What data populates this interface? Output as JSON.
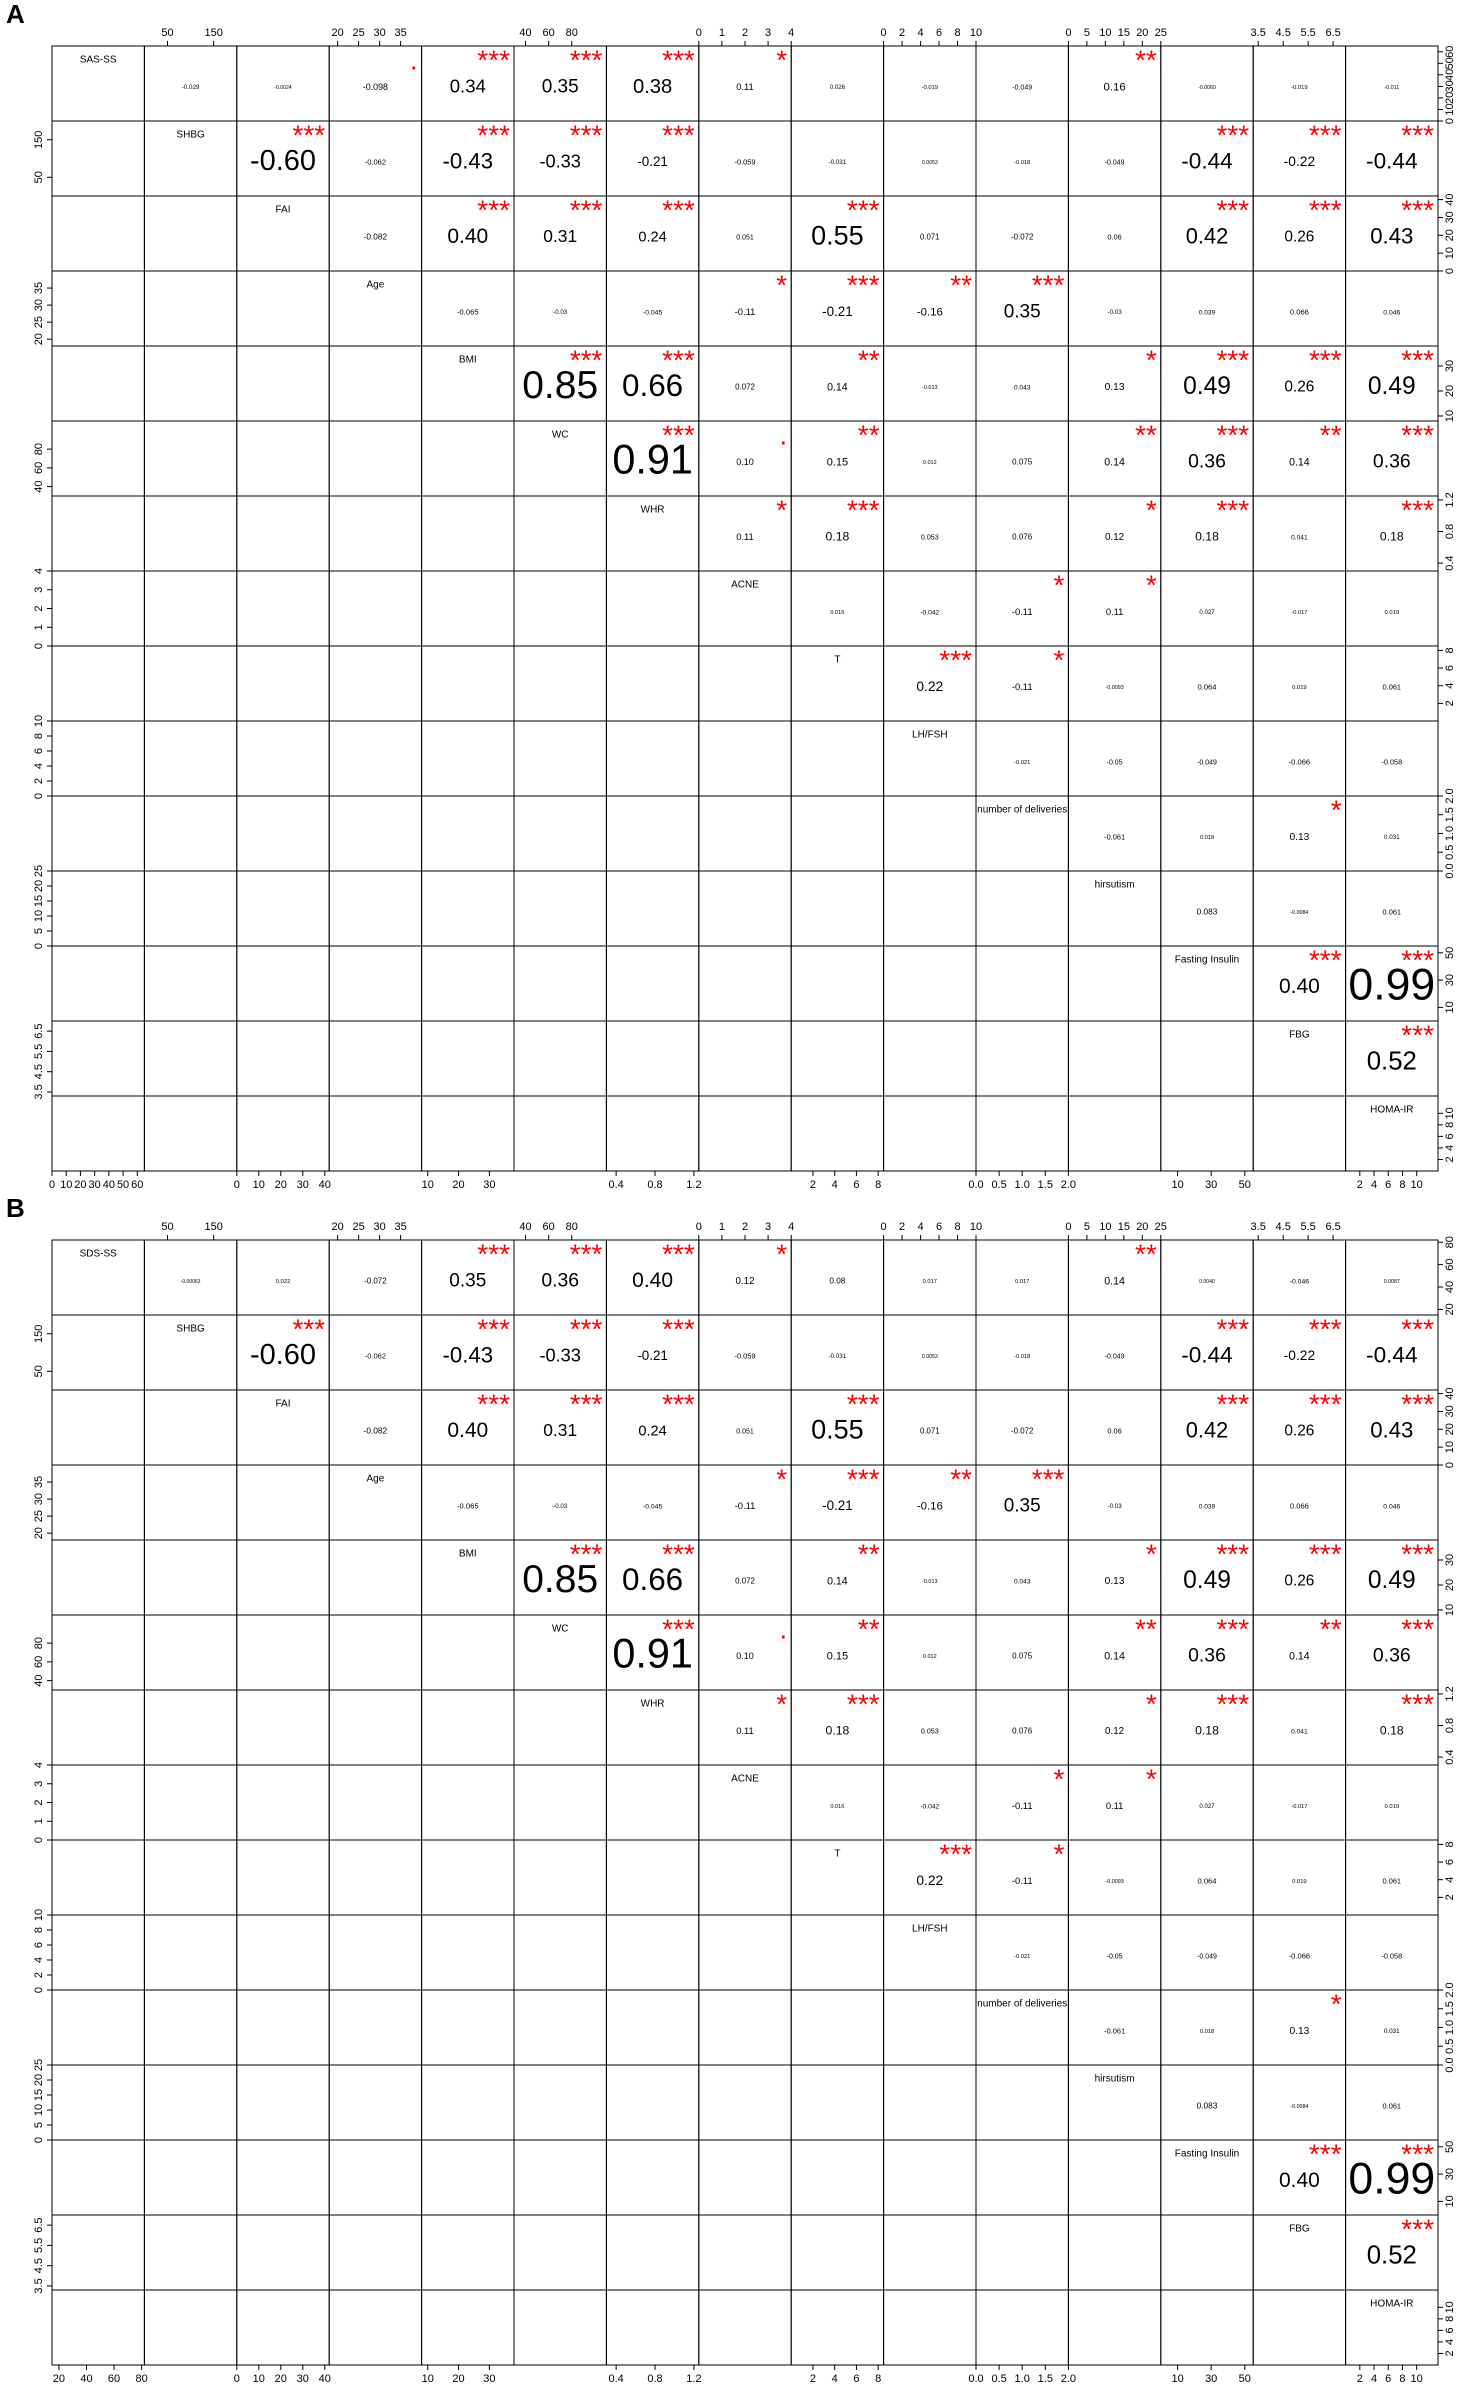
{
  "chart_data": [
    {
      "type": "pairs",
      "panel_label": "A",
      "star_color": "#ff0000",
      "variables": [
        {
          "name": "SAS-SS",
          "lim": [
            0,
            65
          ],
          "ticks": [
            0,
            10,
            20,
            30,
            40,
            50,
            60
          ]
        },
        {
          "name": "SHBG",
          "lim": [
            0,
            200
          ],
          "ticks": [
            50,
            150
          ]
        },
        {
          "name": "FAI",
          "lim": [
            0,
            42
          ],
          "ticks": [
            0,
            10,
            20,
            30,
            40
          ]
        },
        {
          "name": "Age",
          "lim": [
            18,
            40
          ],
          "ticks": [
            20,
            25,
            30,
            35
          ]
        },
        {
          "name": "BMI",
          "lim": [
            8,
            38
          ],
          "ticks": [
            10,
            20,
            30
          ]
        },
        {
          "name": "WC",
          "lim": [
            30,
            110
          ],
          "ticks": [
            40,
            60,
            80
          ]
        },
        {
          "name": "WHR",
          "lim": [
            0.3,
            1.25
          ],
          "ticks": [
            0.4,
            0.8,
            1.2
          ]
        },
        {
          "name": "ACNE",
          "lim": [
            0,
            4
          ],
          "ticks": [
            0,
            1,
            2,
            3,
            4
          ]
        },
        {
          "name": "T",
          "lim": [
            0,
            8.5
          ],
          "ticks": [
            2,
            4,
            6,
            8
          ]
        },
        {
          "name": "LH/FSH",
          "lim": [
            0,
            10
          ],
          "ticks": [
            0,
            2,
            4,
            6,
            8,
            10
          ]
        },
        {
          "name": "number of deliveries",
          "lim": [
            0,
            2
          ],
          "ticks": [
            {
              "value": 0,
              "label": "0.0"
            },
            0.5,
            {
              "value": 1,
              "label": "1.0"
            },
            1.5,
            {
              "value": 2,
              "label": "2.0"
            }
          ]
        },
        {
          "name": "hirsutism",
          "lim": [
            0,
            25
          ],
          "ticks": [
            0,
            5,
            10,
            15,
            20,
            25
          ]
        },
        {
          "name": "Fasting Insulin",
          "lim": [
            0,
            55
          ],
          "ticks": [
            10,
            30,
            50
          ]
        },
        {
          "name": "FBG",
          "lim": [
            3.3,
            7
          ],
          "ticks": [
            3.5,
            4.5,
            5.5,
            6.5
          ]
        },
        {
          "name": "HOMA-IR",
          "lim": [
            0,
            13
          ],
          "ticks": [
            2,
            4,
            6,
            8,
            10
          ]
        }
      ],
      "correlations": [
        [
          -0.029,
          -0.0024,
          -0.098,
          0.34,
          0.35,
          0.38,
          0.11,
          0.026,
          -0.019,
          -0.049,
          0.16,
          -0.006,
          -0.019,
          -0.011
        ],
        [
          -0.6,
          -0.062,
          -0.43,
          -0.33,
          -0.21,
          -0.059,
          -0.031,
          0.0053,
          -0.018,
          -0.049,
          -0.44,
          -0.22,
          -0.44
        ],
        [
          -0.082,
          0.4,
          0.31,
          0.24,
          0.051,
          0.55,
          0.071,
          -0.072,
          0.06,
          0.42,
          0.26,
          0.43
        ],
        [
          -0.065,
          -0.03,
          -0.045,
          -0.11,
          -0.21,
          -0.16,
          0.35,
          -0.03,
          0.039,
          0.066,
          0.046
        ],
        [
          0.85,
          0.66,
          0.072,
          0.14,
          -0.013,
          0.043,
          0.13,
          0.49,
          0.26,
          0.49
        ],
        [
          0.91,
          0.1,
          0.15,
          0.012,
          0.075,
          0.14,
          0.36,
          0.14,
          0.36
        ],
        [
          0.11,
          0.18,
          0.053,
          0.076,
          0.12,
          0.18,
          0.041,
          0.18
        ],
        [
          0.016,
          -0.042,
          -0.11,
          0.11,
          0.027,
          -0.017,
          0.019
        ],
        [
          0.22,
          -0.11,
          -0.0093,
          0.064,
          0.019,
          0.061
        ],
        [
          -0.021,
          -0.05,
          -0.049,
          -0.066,
          -0.058
        ],
        [
          -0.061,
          0.018,
          0.13,
          0.031
        ],
        [
          0.083,
          -0.0084,
          0.061
        ],
        [
          0.4,
          0.99
        ],
        [
          0.52
        ]
      ],
      "correlation_labels": [
        [
          "-0.029",
          "-0.0024",
          "-0.098",
          "0.34",
          "0.35",
          "0.38",
          "0.11",
          "0.026",
          "-0.019",
          "-0.049",
          "0.16",
          "-0.0060",
          "-0.019",
          "-0.011"
        ],
        [
          "-0.60",
          "-0.062",
          "-0.43",
          "-0.33",
          "-0.21",
          "-0.059",
          "-0.031",
          "0.0053",
          "-0.018",
          "-0.049",
          "-0.44",
          "-0.22",
          "-0.44"
        ],
        [
          "-0.082",
          "0.40",
          "0.31",
          "0.24",
          "0.051",
          "0.55",
          "0.071",
          "-0.072",
          "0.06",
          "0.42",
          "0.26",
          "0.43"
        ],
        [
          "-0.065",
          "-0.03",
          "-0.045",
          "-0.11",
          "-0.21",
          "-0.16",
          "0.35",
          "-0.03",
          "0.039",
          "0.066",
          "0.046"
        ],
        [
          "0.85",
          "0.66",
          "0.072",
          "0.14",
          "-0.013",
          "0.043",
          "0.13",
          "0.49",
          "0.26",
          "0.49"
        ],
        [
          "0.91",
          "0.10",
          "0.15",
          "0.012",
          "0.075",
          "0.14",
          "0.36",
          "0.14",
          "0.36"
        ],
        [
          "0.11",
          "0.18",
          "0.053",
          "0.076",
          "0.12",
          "0.18",
          "0.041",
          "0.18"
        ],
        [
          "0.016",
          "-0.042",
          "-0.11",
          "0.11",
          "0.027",
          "-0.017",
          "0.019"
        ],
        [
          "0.22",
          "-0.11",
          "-0.0093",
          "0.064",
          "0.019",
          "0.061"
        ],
        [
          "-0.021",
          "-0.05",
          "-0.049",
          "-0.066",
          "-0.058"
        ],
        [
          "-0.061",
          "0.018",
          "0.13",
          "0.031"
        ],
        [
          "0.083",
          "-0.0084",
          "0.061"
        ],
        [
          "0.40",
          "0.99"
        ],
        [
          "0.52"
        ]
      ],
      "stars": [
        [
          null,
          null,
          ".",
          "***",
          "***",
          "***",
          "*",
          null,
          null,
          null,
          "**",
          null,
          null,
          null
        ],
        [
          "***",
          null,
          "***",
          "***",
          "***",
          null,
          null,
          null,
          null,
          null,
          "***",
          "***",
          "***"
        ],
        [
          null,
          "***",
          "***",
          "***",
          null,
          "***",
          null,
          null,
          null,
          "***",
          "***",
          "***"
        ],
        [
          null,
          null,
          null,
          "*",
          "***",
          "**",
          "***",
          null,
          null,
          null,
          null
        ],
        [
          "***",
          "***",
          null,
          "**",
          null,
          null,
          "*",
          "***",
          "***",
          "***"
        ],
        [
          "***",
          ".",
          "**",
          null,
          null,
          "**",
          "***",
          "**",
          "***"
        ],
        [
          "*",
          "***",
          null,
          null,
          "*",
          "***",
          null,
          "***"
        ],
        [
          null,
          null,
          "*",
          "*",
          null,
          null,
          null
        ],
        [
          "***",
          "*",
          null,
          null,
          null,
          null
        ],
        [
          null,
          null,
          null,
          null,
          null
        ],
        [
          null,
          null,
          "*",
          null
        ],
        [
          null,
          null,
          null
        ],
        [
          "***",
          "***"
        ],
        [
          "***"
        ]
      ]
    },
    {
      "type": "pairs",
      "panel_label": "B",
      "star_color": "#ff0000",
      "variables": [
        {
          "name": "SDS-SS",
          "lim": [
            15,
            82
          ],
          "ticks": [
            20,
            40,
            60,
            80
          ]
        },
        {
          "name": "SHBG",
          "lim": [
            0,
            200
          ],
          "ticks": [
            50,
            150
          ]
        },
        {
          "name": "FAI",
          "lim": [
            0,
            42
          ],
          "ticks": [
            0,
            10,
            20,
            30,
            40
          ]
        },
        {
          "name": "Age",
          "lim": [
            18,
            40
          ],
          "ticks": [
            20,
            25,
            30,
            35
          ]
        },
        {
          "name": "BMI",
          "lim": [
            8,
            38
          ],
          "ticks": [
            10,
            20,
            30
          ]
        },
        {
          "name": "WC",
          "lim": [
            30,
            110
          ],
          "ticks": [
            40,
            60,
            80
          ]
        },
        {
          "name": "WHR",
          "lim": [
            0.3,
            1.25
          ],
          "ticks": [
            0.4,
            0.8,
            1.2
          ]
        },
        {
          "name": "ACNE",
          "lim": [
            0,
            4
          ],
          "ticks": [
            0,
            1,
            2,
            3,
            4
          ]
        },
        {
          "name": "T",
          "lim": [
            0,
            8.5
          ],
          "ticks": [
            2,
            4,
            6,
            8
          ]
        },
        {
          "name": "LH/FSH",
          "lim": [
            0,
            10
          ],
          "ticks": [
            0,
            2,
            4,
            6,
            8,
            10
          ]
        },
        {
          "name": "number of deliveries",
          "lim": [
            0,
            2
          ],
          "ticks": [
            {
              "value": 0,
              "label": "0.0"
            },
            0.5,
            {
              "value": 1,
              "label": "1.0"
            },
            1.5,
            {
              "value": 2,
              "label": "2.0"
            }
          ]
        },
        {
          "name": "hirsutism",
          "lim": [
            0,
            25
          ],
          "ticks": [
            0,
            5,
            10,
            15,
            20,
            25
          ]
        },
        {
          "name": "Fasting Insulin",
          "lim": [
            0,
            55
          ],
          "ticks": [
            10,
            30,
            50
          ]
        },
        {
          "name": "FBG",
          "lim": [
            3.3,
            7
          ],
          "ticks": [
            3.5,
            4.5,
            5.5,
            6.5
          ]
        },
        {
          "name": "HOMA-IR",
          "lim": [
            0,
            13
          ],
          "ticks": [
            2,
            4,
            6,
            8,
            10
          ]
        }
      ],
      "correlations": [
        [
          -0.00063,
          0.022,
          -0.072,
          0.35,
          0.36,
          0.4,
          0.12,
          0.08,
          0.017,
          0.017,
          0.14,
          0.004,
          -0.046,
          0.0087
        ],
        [
          -0.6,
          -0.062,
          -0.43,
          -0.33,
          -0.21,
          -0.059,
          -0.031,
          0.0053,
          -0.018,
          -0.049,
          -0.44,
          -0.22,
          -0.44
        ],
        [
          -0.082,
          0.4,
          0.31,
          0.24,
          0.051,
          0.55,
          0.071,
          -0.072,
          0.06,
          0.42,
          0.26,
          0.43
        ],
        [
          -0.065,
          -0.03,
          -0.045,
          -0.11,
          -0.21,
          -0.16,
          0.35,
          -0.03,
          0.039,
          0.066,
          0.046
        ],
        [
          0.85,
          0.66,
          0.072,
          0.14,
          -0.013,
          0.043,
          0.13,
          0.49,
          0.26,
          0.49
        ],
        [
          0.91,
          0.1,
          0.15,
          0.012,
          0.075,
          0.14,
          0.36,
          0.14,
          0.36
        ],
        [
          0.11,
          0.18,
          0.053,
          0.076,
          0.12,
          0.18,
          0.041,
          0.18
        ],
        [
          0.016,
          -0.042,
          -0.11,
          0.11,
          0.027,
          -0.017,
          0.019
        ],
        [
          0.22,
          -0.11,
          -0.0093,
          0.064,
          0.019,
          0.061
        ],
        [
          -0.021,
          -0.05,
          -0.049,
          -0.066,
          -0.058
        ],
        [
          -0.061,
          0.018,
          0.13,
          0.031
        ],
        [
          0.083,
          -0.0084,
          0.061
        ],
        [
          0.4,
          0.99
        ],
        [
          0.52
        ]
      ],
      "correlation_labels": [
        [
          "-0.00063",
          "0.022",
          "-0.072",
          "0.35",
          "0.36",
          "0.40",
          "0.12",
          "0.08",
          "0.017",
          "0.017",
          "0.14",
          "0.0040",
          "-0.046",
          "0.0087"
        ],
        [
          "-0.60",
          "-0.062",
          "-0.43",
          "-0.33",
          "-0.21",
          "-0.059",
          "-0.031",
          "0.0053",
          "-0.018",
          "-0.049",
          "-0.44",
          "-0.22",
          "-0.44"
        ],
        [
          "-0.082",
          "0.40",
          "0.31",
          "0.24",
          "0.051",
          "0.55",
          "0.071",
          "-0.072",
          "0.06",
          "0.42",
          "0.26",
          "0.43"
        ],
        [
          "-0.065",
          "-0.03",
          "-0.045",
          "-0.11",
          "-0.21",
          "-0.16",
          "0.35",
          "-0.03",
          "0.039",
          "0.066",
          "0.046"
        ],
        [
          "0.85",
          "0.66",
          "0.072",
          "0.14",
          "-0.013",
          "0.043",
          "0.13",
          "0.49",
          "0.26",
          "0.49"
        ],
        [
          "0.91",
          "0.10",
          "0.15",
          "0.012",
          "0.075",
          "0.14",
          "0.36",
          "0.14",
          "0.36"
        ],
        [
          "0.11",
          "0.18",
          "0.053",
          "0.076",
          "0.12",
          "0.18",
          "0.041",
          "0.18"
        ],
        [
          "0.016",
          "-0.042",
          "-0.11",
          "0.11",
          "0.027",
          "-0.017",
          "0.019"
        ],
        [
          "0.22",
          "-0.11",
          "-0.0093",
          "0.064",
          "0.019",
          "0.061"
        ],
        [
          "-0.021",
          "-0.05",
          "-0.049",
          "-0.066",
          "-0.058"
        ],
        [
          "-0.061",
          "0.018",
          "0.13",
          "0.031"
        ],
        [
          "0.083",
          "-0.0084",
          "0.061"
        ],
        [
          "0.40",
          "0.99"
        ],
        [
          "0.52"
        ]
      ],
      "stars": [
        [
          null,
          null,
          null,
          "***",
          "***",
          "***",
          "*",
          null,
          null,
          null,
          "**",
          null,
          null,
          null
        ],
        [
          "***",
          null,
          "***",
          "***",
          "***",
          null,
          null,
          null,
          null,
          null,
          "***",
          "***",
          "***"
        ],
        [
          null,
          "***",
          "***",
          "***",
          null,
          "***",
          null,
          null,
          null,
          "***",
          "***",
          "***"
        ],
        [
          null,
          null,
          null,
          "*",
          "***",
          "**",
          "***",
          null,
          null,
          null,
          null
        ],
        [
          "***",
          "***",
          null,
          "**",
          null,
          null,
          "*",
          "***",
          "***",
          "***"
        ],
        [
          "***",
          ".",
          "**",
          null,
          null,
          "**",
          "***",
          "**",
          "***"
        ],
        [
          "*",
          "***",
          null,
          null,
          "*",
          "***",
          null,
          "***"
        ],
        [
          null,
          null,
          "*",
          "*",
          null,
          null,
          null
        ],
        [
          "***",
          "*",
          null,
          null,
          null,
          null
        ],
        [
          null,
          null,
          null,
          null,
          null
        ],
        [
          null,
          null,
          "*",
          null
        ],
        [
          null,
          null,
          null
        ],
        [
          "***",
          "***"
        ],
        [
          "***"
        ]
      ]
    }
  ]
}
